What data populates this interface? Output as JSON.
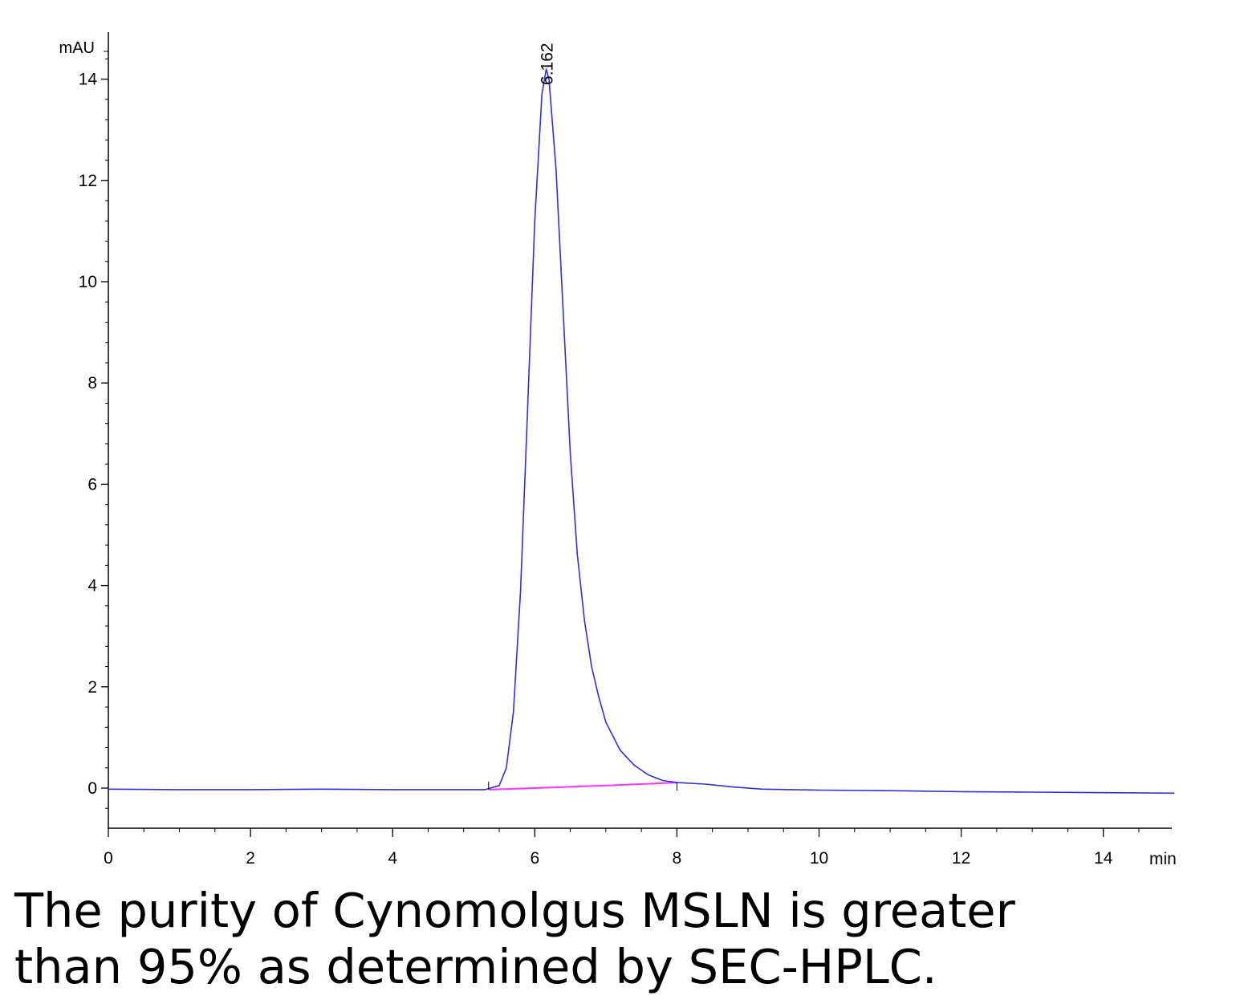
{
  "chart_data": {
    "type": "line",
    "xlabel": "min",
    "ylabel": "mAU",
    "xlim": [
      0,
      15
    ],
    "ylim": [
      -0.8,
      15
    ],
    "x_ticks": [
      0,
      2,
      4,
      6,
      8,
      10,
      12,
      14
    ],
    "y_ticks": [
      0,
      2,
      4,
      6,
      8,
      10,
      12,
      14
    ],
    "grid": false,
    "colors": {
      "signal": "#2e2ee8",
      "baseline": "#ff33ff",
      "axis": "#000000"
    },
    "peak_label": "6.162",
    "peak": {
      "retention_time": 6.162,
      "height": 14.2
    },
    "series": [
      {
        "values_xy": [
          [
            0.0,
            -0.02
          ],
          [
            1.0,
            -0.03
          ],
          [
            2.0,
            -0.03
          ],
          [
            3.0,
            -0.02
          ],
          [
            4.0,
            -0.03
          ],
          [
            5.0,
            -0.03
          ],
          [
            5.3,
            -0.03
          ],
          [
            5.5,
            0.05
          ],
          [
            5.6,
            0.4
          ],
          [
            5.7,
            1.5
          ],
          [
            5.8,
            3.9
          ],
          [
            5.9,
            7.5
          ],
          [
            6.0,
            11.2
          ],
          [
            6.1,
            13.7
          ],
          [
            6.162,
            14.2
          ],
          [
            6.2,
            14.0
          ],
          [
            6.3,
            12.2
          ],
          [
            6.4,
            9.4
          ],
          [
            6.5,
            6.6
          ],
          [
            6.6,
            4.6
          ],
          [
            6.7,
            3.3
          ],
          [
            6.8,
            2.4
          ],
          [
            6.9,
            1.8
          ],
          [
            7.0,
            1.3
          ],
          [
            7.2,
            0.75
          ],
          [
            7.4,
            0.45
          ],
          [
            7.6,
            0.26
          ],
          [
            7.8,
            0.15
          ],
          [
            8.0,
            0.11
          ],
          [
            8.4,
            0.08
          ],
          [
            8.8,
            0.02
          ],
          [
            9.2,
            -0.02
          ],
          [
            10.0,
            -0.04
          ],
          [
            11.0,
            -0.05
          ],
          [
            12.0,
            -0.07
          ],
          [
            13.0,
            -0.08
          ],
          [
            14.0,
            -0.09
          ],
          [
            15.0,
            -0.1
          ]
        ]
      },
      {
        "values_xy": [
          [
            5.35,
            -0.03
          ],
          [
            6.0,
            0.0
          ],
          [
            7.0,
            0.05
          ],
          [
            8.0,
            0.11
          ]
        ]
      }
    ]
  },
  "caption": {
    "line1": "The purity of Cynomolgus MSLN is greater",
    "line2": "than 95% as determined by SEC-HPLC."
  }
}
